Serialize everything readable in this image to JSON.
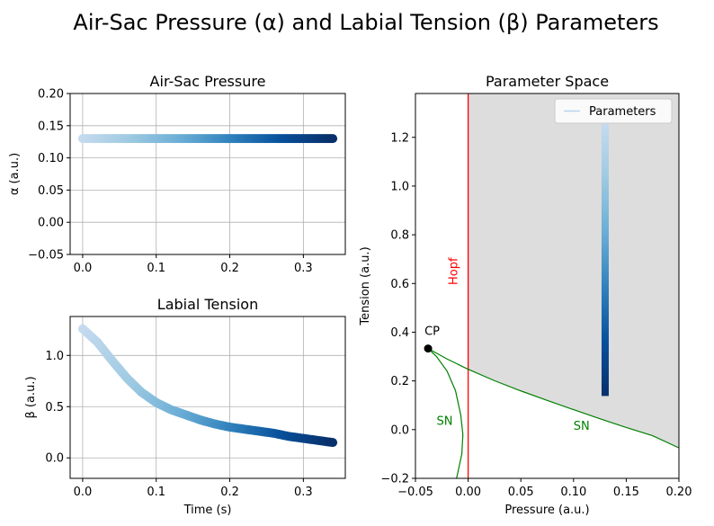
{
  "suptitle": "Air-Sac Pressure (α) and Labial Tension (β) Parameters",
  "chart_data": [
    {
      "type": "scatter",
      "title": "Air-Sac Pressure",
      "xlabel": "",
      "ylabel": "α (a.u.)",
      "xlim": [
        -0.017,
        0.357
      ],
      "ylim": [
        -0.05,
        0.2
      ],
      "xticks": [
        "0.0",
        "0.1",
        "0.2",
        "0.3"
      ],
      "xtick_values": [
        0,
        0.1,
        0.2,
        0.3
      ],
      "yticks": [
        "−0.05",
        "0.00",
        "0.05",
        "0.10",
        "0.15",
        "0.20"
      ],
      "ytick_values": [
        -0.05,
        0,
        0.05,
        0.1,
        0.15,
        0.2
      ],
      "grid": true,
      "colormap": [
        "#c6dbef",
        "#9ecae1",
        "#6baed6",
        "#3182bd",
        "#08519c",
        "#08306b"
      ],
      "x_range": [
        0,
        0.34
      ],
      "y_constant": 0.13
    },
    {
      "type": "scatter",
      "title": "Labial Tension",
      "xlabel": "Time (s)",
      "ylabel": "β (a.u.)",
      "xlim": [
        -0.017,
        0.357
      ],
      "ylim": [
        -0.2,
        1.38
      ],
      "xticks": [
        "0.0",
        "0.1",
        "0.2",
        "0.3"
      ],
      "xtick_values": [
        0,
        0.1,
        0.2,
        0.3
      ],
      "yticks": [
        "0.0",
        "0.5",
        "1.0"
      ],
      "ytick_values": [
        0,
        0.5,
        1.0
      ],
      "grid": true,
      "colormap": [
        "#c6dbef",
        "#9ecae1",
        "#6baed6",
        "#3182bd",
        "#08519c",
        "#08306b"
      ],
      "x": [
        0,
        0.02,
        0.04,
        0.06,
        0.08,
        0.1,
        0.12,
        0.14,
        0.16,
        0.18,
        0.2,
        0.22,
        0.24,
        0.26,
        0.28,
        0.3,
        0.32,
        0.34
      ],
      "y": [
        1.26,
        1.13,
        0.95,
        0.78,
        0.64,
        0.54,
        0.47,
        0.42,
        0.37,
        0.33,
        0.3,
        0.28,
        0.26,
        0.24,
        0.21,
        0.19,
        0.17,
        0.15
      ]
    },
    {
      "type": "line",
      "title": "Parameter Space",
      "xlabel": "Pressure (a.u.)",
      "ylabel": "Tension (a.u.)",
      "xlim": [
        -0.05,
        0.2
      ],
      "ylim": [
        -0.2,
        1.38
      ],
      "xticks": [
        "−0.05",
        "0.00",
        "0.05",
        "0.10",
        "0.15",
        "0.20"
      ],
      "xtick_values": [
        -0.05,
        0,
        0.05,
        0.1,
        0.15,
        0.2
      ],
      "yticks": [
        "−0.2",
        "0.0",
        "0.2",
        "0.4",
        "0.6",
        "0.8",
        "1.0",
        "1.2"
      ],
      "ytick_values": [
        -0.2,
        0,
        0.2,
        0.4,
        0.6,
        0.8,
        1.0,
        1.2
      ],
      "grid": false,
      "legend": {
        "placement": "top-right",
        "entries": [
          "Parameters"
        ]
      },
      "parameters_path": {
        "x": 0.13,
        "y_range": [
          0.14,
          1.26
        ]
      },
      "hopf_line": {
        "x": 0,
        "label": "Hopf",
        "color": "#ff0000"
      },
      "cusp_point": {
        "x": -0.038,
        "y": 0.333,
        "label": "CP"
      },
      "sn_upper": {
        "label": "SN",
        "color": "#008000",
        "x": [
          -0.038,
          -0.02,
          0,
          0.025,
          0.05,
          0.075,
          0.1,
          0.125,
          0.15,
          0.175,
          0.2
        ],
        "y": [
          0.333,
          0.29,
          0.248,
          0.201,
          0.159,
          0.12,
          0.082,
          0.045,
          0.009,
          -0.025,
          -0.075
        ]
      },
      "sn_lower": {
        "label": "SN",
        "color": "#008000",
        "x": [
          -0.038,
          -0.03,
          -0.02,
          -0.012,
          -0.007,
          -0.005,
          -0.006,
          -0.011
        ],
        "y": [
          0.333,
          0.3,
          0.24,
          0.16,
          0.06,
          -0.02,
          -0.1,
          -0.2
        ]
      },
      "shaded_region_color": "#dddddd"
    }
  ]
}
